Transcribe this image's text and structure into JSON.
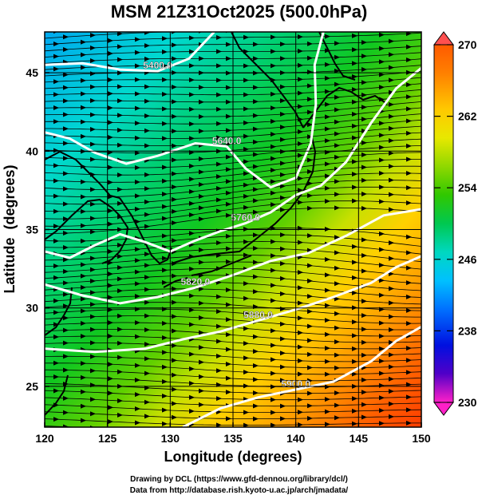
{
  "title": "MSM 21Z31Oct2025 (500.0hPa)",
  "map": {
    "xlabel": "Longitude (degrees)",
    "ylabel": "Latitude  (degrees)",
    "xlim": [
      120,
      150
    ],
    "ylim": [
      22.4,
      47.6
    ],
    "xticks": [
      120,
      125,
      130,
      135,
      140,
      145,
      150
    ],
    "yticks": [
      25,
      30,
      35,
      40,
      45
    ],
    "grid": true,
    "field": "temperature (K) with wind streamlines and geopotential height contours",
    "wind_direction": "westerly (west to east)"
  },
  "contours": [
    {
      "label": "5400.0",
      "points": [
        [
          120,
          45.5
        ],
        [
          123,
          45.6
        ],
        [
          126,
          45.2
        ],
        [
          129,
          45.1
        ],
        [
          131.5,
          45.9
        ],
        [
          133.5,
          47.6
        ]
      ]
    },
    {
      "label": "5640.0",
      "points": [
        [
          120,
          41.2
        ],
        [
          122,
          40.8
        ],
        [
          124,
          39.9
        ],
        [
          126.5,
          39.2
        ],
        [
          129,
          39.7
        ],
        [
          132,
          40.5
        ],
        [
          134.5,
          40.3
        ],
        [
          136,
          38.9
        ],
        [
          138,
          37.7
        ],
        [
          140,
          38.3
        ],
        [
          141.2,
          40.5
        ],
        [
          141.6,
          43
        ],
        [
          141.5,
          45.5
        ],
        [
          142.2,
          47.6
        ]
      ]
    },
    {
      "label": "5760.0",
      "points": [
        [
          120,
          33.6
        ],
        [
          122,
          33.2
        ],
        [
          124,
          34.0
        ],
        [
          126,
          34.7
        ],
        [
          128,
          34.2
        ],
        [
          130,
          33.6
        ],
        [
          132,
          34.3
        ],
        [
          134,
          34.9
        ],
        [
          136,
          35.4
        ],
        [
          138,
          36.1
        ],
        [
          140,
          37.2
        ],
        [
          142,
          37.8
        ],
        [
          144,
          39.3
        ],
        [
          146,
          41.8
        ],
        [
          148,
          44.0
        ],
        [
          150,
          45.3
        ]
      ]
    },
    {
      "label": "5820.0",
      "points": [
        [
          120,
          31.5
        ],
        [
          123,
          30.8
        ],
        [
          126,
          30.3
        ],
        [
          129,
          30.7
        ],
        [
          132,
          31.3
        ],
        [
          135,
          32.1
        ],
        [
          138,
          33.0
        ],
        [
          141,
          33.5
        ],
        [
          144,
          34.6
        ],
        [
          147,
          35.9
        ],
        [
          150,
          36.3
        ]
      ]
    },
    {
      "label": "5880.0",
      "points": [
        [
          120,
          27.4
        ],
        [
          124,
          27.2
        ],
        [
          128,
          27.4
        ],
        [
          131,
          28.0
        ],
        [
          134,
          28.5
        ],
        [
          137,
          29.2
        ],
        [
          140,
          29.9
        ],
        [
          143,
          30.7
        ],
        [
          146,
          31.6
        ],
        [
          148,
          32.6
        ],
        [
          150,
          33.3
        ]
      ]
    },
    {
      "label": "5900.0",
      "points": [
        [
          131,
          22.4
        ],
        [
          134,
          23.6
        ],
        [
          137,
          24.3
        ],
        [
          140,
          24.8
        ],
        [
          143,
          25.3
        ],
        [
          146,
          26.6
        ],
        [
          148,
          27.9
        ],
        [
          150,
          28.8
        ]
      ]
    }
  ],
  "colorbar": {
    "min": 230,
    "max": 270,
    "tick_labels": [
      "270",
      "262",
      "254",
      "246",
      "238",
      "230"
    ],
    "colors": [
      "#ff5a00",
      "#ff7a00",
      "#ffb000",
      "#e8e000",
      "#a8d800",
      "#40c800",
      "#00c830",
      "#00d8a0",
      "#00c8ff",
      "#0070ff",
      "#0010e0",
      "#4000c0",
      "#ff20c0"
    ]
  },
  "credits": {
    "line1": "Drawing by DCL (https://www.gfd-dennou.org/library/dcl/)",
    "line2": "Data from http://database.rish.kyoto-u.ac.jp/arch/jmadata/"
  }
}
